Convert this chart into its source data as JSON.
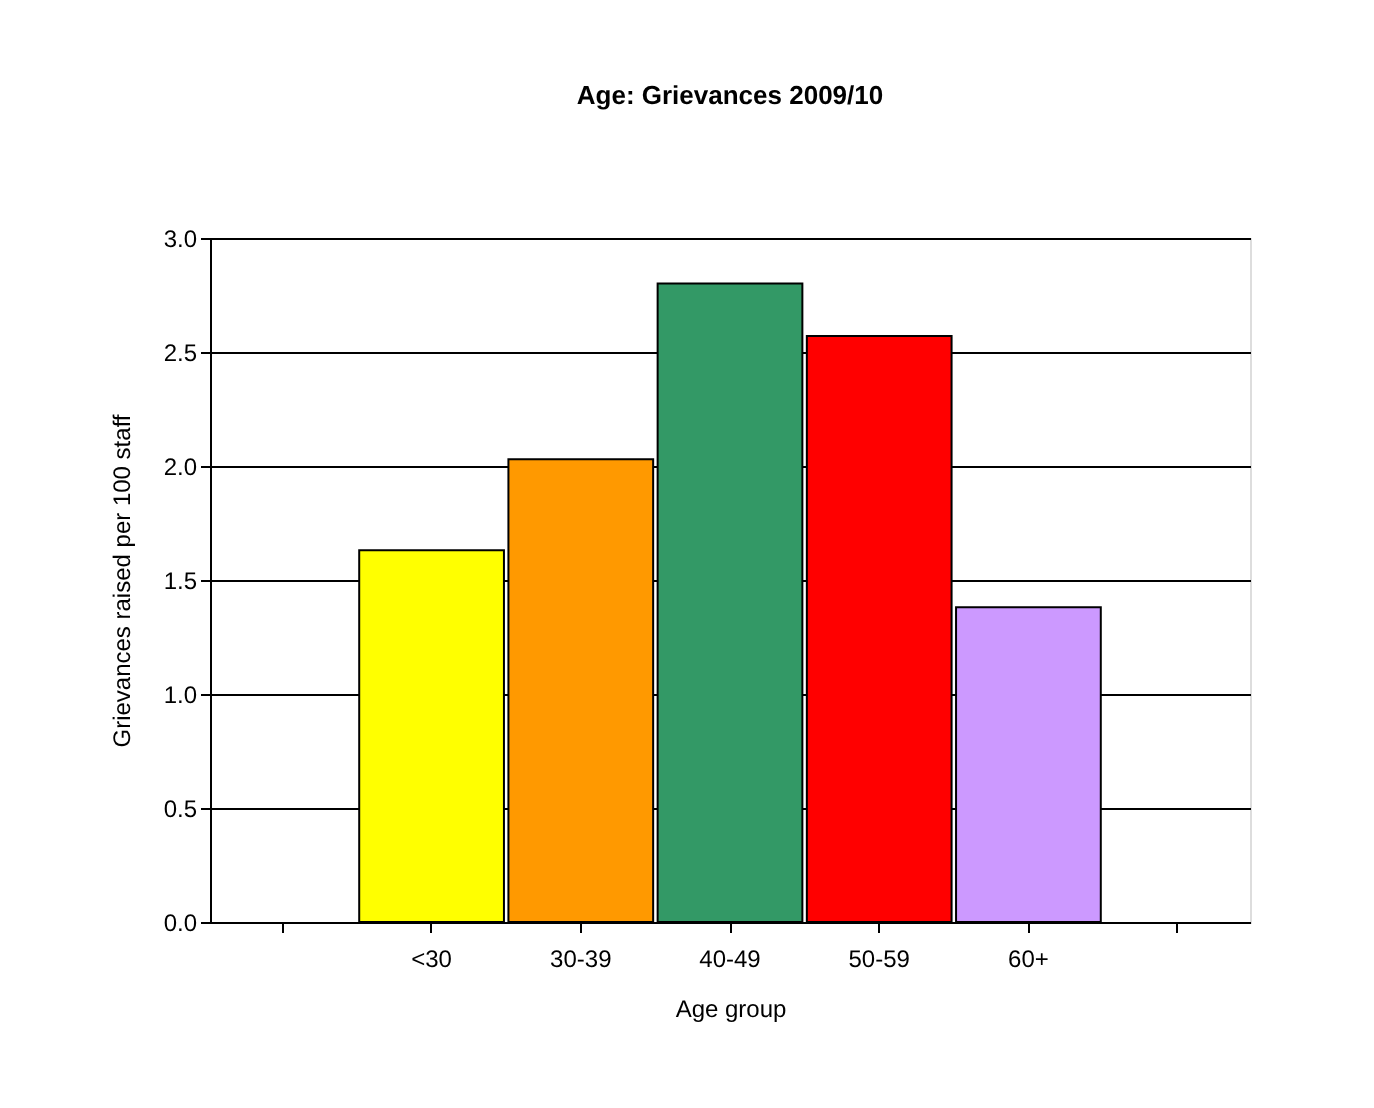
{
  "chart_data": {
    "type": "bar",
    "title": "Age: Grievances 2009/10",
    "xlabel": "Age group",
    "ylabel": "Grievances raised per 100 staff",
    "categories": [
      null,
      "<30",
      "30-39",
      "40-49",
      "50-59",
      "60+",
      null
    ],
    "values": [
      null,
      1.63,
      2.03,
      2.8,
      2.57,
      1.38,
      null
    ],
    "colors": [
      "#ffffff",
      "#ffff00",
      "#ff9900",
      "#339966",
      "#ff0000",
      "#cc99ff",
      "#ffffff"
    ],
    "ylim": [
      0,
      3
    ],
    "yticks": [
      {
        "value": 0,
        "label": "0.0"
      },
      {
        "value": 0.5,
        "label": "0.5"
      },
      {
        "value": 1,
        "label": "1.0"
      },
      {
        "value": 1.5,
        "label": "1.5"
      },
      {
        "value": 2,
        "label": "2.0"
      },
      {
        "value": 2.5,
        "label": "2.5"
      },
      {
        "value": 3,
        "label": "3.0"
      }
    ],
    "grid": "y"
  }
}
